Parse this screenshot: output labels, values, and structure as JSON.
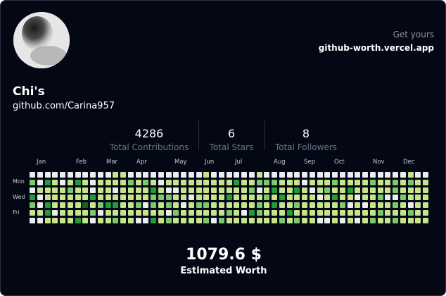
{
  "profile": {
    "name": "Chi's",
    "handle": "github.com/Carina957"
  },
  "promo": {
    "caption": "Get yours",
    "link": "github-worth.vercel.app"
  },
  "stats": [
    {
      "value": "4286",
      "label": "Total Contributions"
    },
    {
      "value": "6",
      "label": "Total Stars"
    },
    {
      "value": "8",
      "label": "Total Followers"
    }
  ],
  "calendar": {
    "months": [
      "Jan",
      "Feb",
      "Mar",
      "Apr",
      "May",
      "Jun",
      "Jul",
      "Aug",
      "Sep",
      "Oct",
      "Nov",
      "Dec"
    ],
    "weekday_labels": [
      "Mon",
      "Wed",
      "Fri"
    ],
    "colors": {
      "0": "#ebedf0",
      "1": "#c6e48b",
      "2": "#7bc96f",
      "3": "#239a3b",
      "4": "#196127"
    }
  },
  "worth": {
    "value": "1079.6 $",
    "label": "Estimated Worth"
  }
}
